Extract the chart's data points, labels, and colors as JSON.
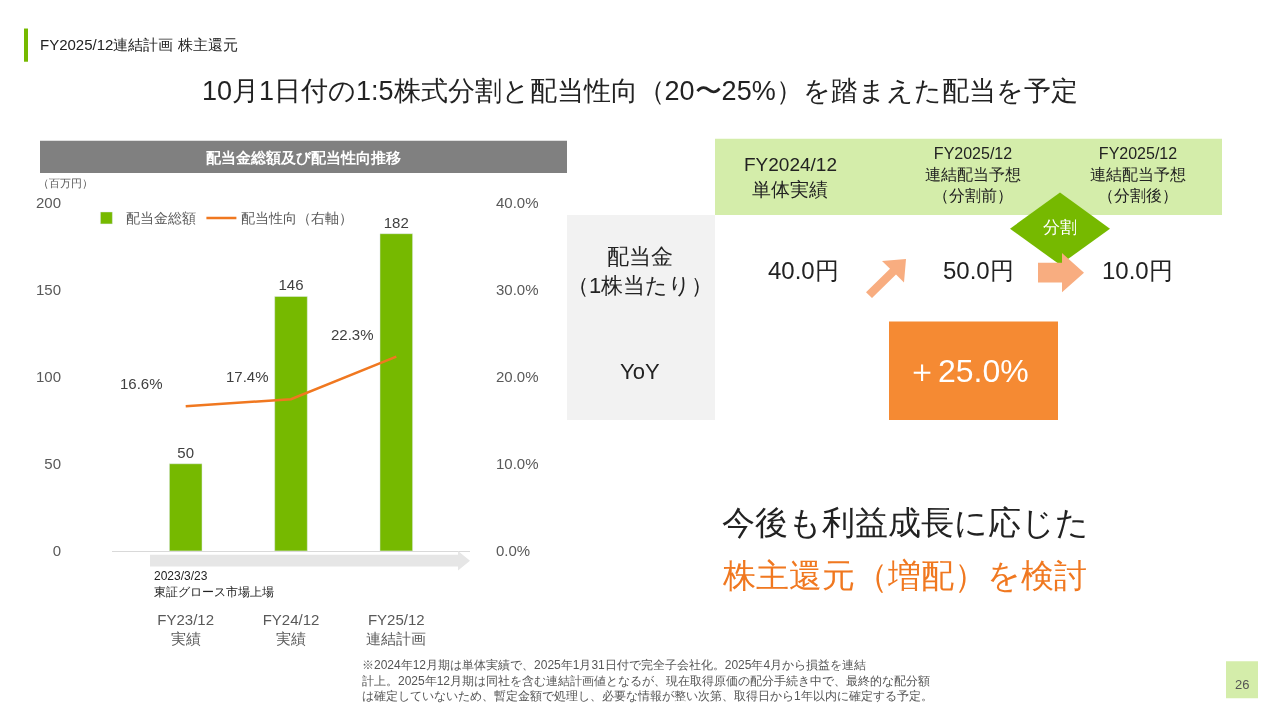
{
  "chart_data": [
    {
      "type": "bar",
      "title": "配当金総額及び配当性向推移",
      "ylabel": "（百万円）",
      "categories": [
        "FY23/12\n実績",
        "FY24/12\n実績",
        "FY25/12\n連結計画"
      ],
      "series": [
        {
          "name": "配当金総額",
          "type": "bar",
          "color": "#76b900",
          "values": [
            50,
            146,
            182
          ],
          "value_labels": [
            "50",
            "146",
            "182"
          ]
        },
        {
          "name": "配当性向（右軸）",
          "type": "line",
          "axis": "y2",
          "color": "#f07820",
          "values": [
            16.6,
            17.4,
            22.3
          ],
          "value_labels": [
            "16.6%",
            "17.4%",
            "22.3%"
          ]
        }
      ],
      "ylim": [
        0,
        200
      ],
      "yticks": [
        0,
        50,
        100,
        150,
        200
      ],
      "y2lim": [
        0,
        40
      ],
      "y2ticks": [
        {
          "value": 0,
          "label": "0.0%"
        },
        {
          "value": 10,
          "label": "10.0%"
        },
        {
          "value": 20,
          "label": "20.0%"
        },
        {
          "value": 30,
          "label": "30.0%"
        },
        {
          "value": 40,
          "label": "40.0%"
        }
      ],
      "legend": "top left",
      "annotations": [
        "2023/3/23\n東証グロース市場上場"
      ]
    },
    {
      "type": "other",
      "title": "10月1日付の1:5株式分割と配当性向（20〜25%）を踏まえた配当を予定",
      "subtitle": "FY2025/12連結計画 株主還元",
      "annotations": [
        "FY2024/12\n単体実績",
        "FY2025/12\n連結配当予想（分割前）",
        "FY2025/12\n連結配当予想（分割後）",
        "分割",
        "配当金（1株当たり）",
        "40.0円",
        "50.0円",
        "10.0円",
        "YoY",
        "＋25.0%",
        "今後も利益成長に応じた",
        "株主還元（増配）を検討",
        "※2024年12月期は単体実績で、2025年1月31日付で完全子会社化。2025年4月から損益を連結計上。2025年12月期は同社を含む連結計画値となるが、現在取得原価の配分手続き中で、最終的な配分額は確定していないため、暫定金額で処理し、必要な情報が整い次第、取得日から1年以内に確定する予定。",
        "26"
      ]
    }
  ]
}
